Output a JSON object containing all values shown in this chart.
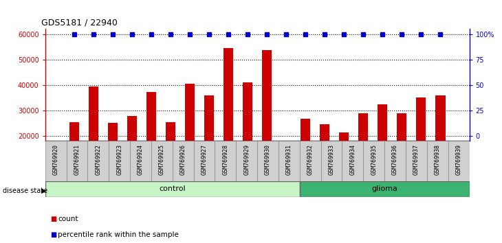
{
  "title": "GDS5181 / 22940",
  "samples": [
    "GSM769920",
    "GSM769921",
    "GSM769922",
    "GSM769923",
    "GSM769924",
    "GSM769925",
    "GSM769926",
    "GSM769927",
    "GSM769928",
    "GSM769929",
    "GSM769930",
    "GSM769931",
    "GSM769932",
    "GSM769933",
    "GSM769934",
    "GSM769935",
    "GSM769936",
    "GSM769937",
    "GSM769938",
    "GSM769939"
  ],
  "counts": [
    25500,
    39500,
    25200,
    27800,
    37200,
    25400,
    40500,
    36000,
    54500,
    41000,
    53800,
    18000,
    26800,
    24500,
    21300,
    29000,
    32500,
    28800,
    35200,
    35800
  ],
  "percentile_ranks": [
    100,
    100,
    100,
    100,
    100,
    100,
    100,
    100,
    100,
    100,
    100,
    100,
    100,
    100,
    100,
    100,
    100,
    100,
    100,
    100
  ],
  "n_control": 12,
  "n_glioma": 8,
  "bar_color": "#cc0000",
  "dot_color": "#0000cc",
  "ylim_left": [
    18000,
    62000
  ],
  "ylim_right": [
    0,
    133
  ],
  "yticks_left": [
    20000,
    30000,
    40000,
    50000,
    60000
  ],
  "ytick_labels_left": [
    "20000",
    "30000",
    "40000",
    "50000",
    "60000"
  ],
  "yticks_right_val": [
    0,
    25,
    50,
    75,
    100
  ],
  "ytick_labels_right": [
    "0",
    "25",
    "50",
    "75",
    "100%"
  ],
  "control_label": "control",
  "glioma_label": "glioma",
  "disease_state_label": "disease state",
  "legend_count": "count",
  "legend_percentile": "percentile rank within the sample",
  "control_color_light": "#c8f5c8",
  "control_color_dark": "#60d060",
  "glioma_color": "#3cb371",
  "xtick_bg": "#d0d0d0",
  "plot_bg": "#ffffff",
  "bar_width": 0.5,
  "dot_marker": "s",
  "dot_size": 4
}
